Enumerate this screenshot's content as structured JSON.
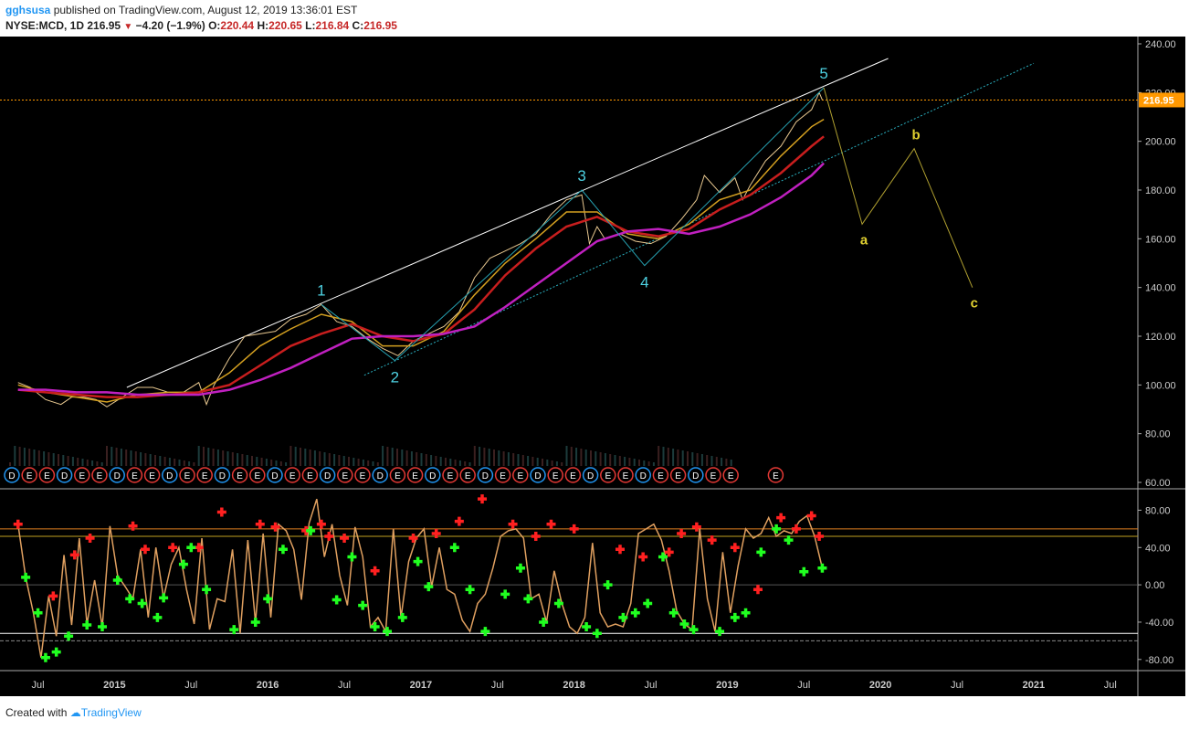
{
  "header": {
    "user": "gghsusa",
    "published": "published on TradingView.com, August 12, 2019 13:36:01 EST",
    "symbol": "NYSE:MCD, 1D",
    "price": "216.95",
    "change": "−4.20 (−1.9%)",
    "o_label": "O:",
    "o_value": "220.44",
    "h_label": "H:",
    "h_value": "220.65",
    "l_label": "L:",
    "l_value": "216.84",
    "c_label": "C:",
    "c_value": "216.95"
  },
  "footer": {
    "created_with": "Created with",
    "brand": "TradingView"
  },
  "colors": {
    "background": "#000000",
    "candle": "#e8c890",
    "ema_fast": "#d4a020",
    "ema_mid": "#c81e1e",
    "ema_slow": "#c020c0",
    "trend_upper": "#ffffff",
    "trend_lower": "#2ab0c0",
    "wave_labels": "#4dd0e1",
    "abc": "#e0d030",
    "osc_line": "#e0a060",
    "osc_up": "#ff2020",
    "osc_down": "#20ff20",
    "price_line": "#ff9800"
  },
  "chart_data": [
    {
      "type": "line",
      "title": "",
      "xlabel": "",
      "ylabel": "",
      "ylim": [
        60,
        240
      ],
      "x_ticks": [
        "Jul",
        "2015",
        "Jul",
        "2016",
        "Jul",
        "2017",
        "Jul",
        "2018",
        "Jul",
        "2019",
        "Jul",
        "2020",
        "Jul",
        "2021",
        "Jul"
      ],
      "y_ticks": [
        "240.00",
        "220.00",
        "200.00",
        "180.00",
        "160.00",
        "140.00",
        "120.00",
        "100.00",
        "80.00",
        "60.00"
      ],
      "last_price_label": "216.95",
      "wave_points": [
        {
          "label": "1",
          "x": 2016.35,
          "y": 133
        },
        {
          "label": "2",
          "x": 2016.83,
          "y": 110
        },
        {
          "label": "3",
          "x": 2018.05,
          "y": 180
        },
        {
          "label": "4",
          "x": 2018.46,
          "y": 149
        },
        {
          "label": "5",
          "x": 2019.63,
          "y": 222
        }
      ],
      "abc_points": [
        {
          "label": "a",
          "x": 2019.88,
          "y": 166
        },
        {
          "label": "b",
          "x": 2020.22,
          "y": 197
        },
        {
          "label": "c",
          "x": 2020.6,
          "y": 140
        }
      ],
      "trendlines": [
        {
          "name": "upper",
          "points": [
            [
              2015.08,
              99
            ],
            [
              2020.05,
              234
            ]
          ]
        },
        {
          "name": "lower",
          "points": [
            [
              2016.63,
              104
            ],
            [
              2021.0,
              232
            ]
          ]
        }
      ],
      "series": [
        {
          "name": "",
          "role": "price",
          "x": [
            2014.37,
            2014.45,
            2014.55,
            2014.65,
            2014.72,
            2014.8,
            2014.88,
            2014.95,
            2015.05,
            2015.15,
            2015.25,
            2015.35,
            2015.45,
            2015.55,
            2015.6,
            2015.65,
            2015.75,
            2015.85,
            2015.95,
            2016.05,
            2016.15,
            2016.25,
            2016.35,
            2016.45,
            2016.55,
            2016.65,
            2016.75,
            2016.85,
            2016.95,
            2017.05,
            2017.15,
            2017.25,
            2017.35,
            2017.45,
            2017.55,
            2017.65,
            2017.75,
            2017.85,
            2017.95,
            2018.05,
            2018.1,
            2018.15,
            2018.2,
            2018.3,
            2018.4,
            2018.5,
            2018.6,
            2018.7,
            2018.8,
            2018.85,
            2018.95,
            2019.05,
            2019.1,
            2019.15,
            2019.25,
            2019.35,
            2019.45,
            2019.55,
            2019.6,
            2019.62
          ],
          "values": [
            101,
            99,
            94,
            92,
            95,
            95,
            94,
            91,
            95,
            99,
            99,
            97,
            97,
            101,
            92,
            100,
            111,
            120,
            121,
            122,
            127,
            129,
            133,
            126,
            124,
            119,
            115,
            112,
            118,
            121,
            124,
            130,
            144,
            152,
            155,
            158,
            162,
            170,
            176,
            178,
            158,
            165,
            160,
            162,
            159,
            158,
            161,
            168,
            176,
            186,
            179,
            185,
            176,
            182,
            192,
            198,
            208,
            213,
            220,
            217
          ]
        },
        {
          "name": "",
          "role": "ema_fast",
          "x": [
            2014.37,
            2014.55,
            2014.75,
            2014.95,
            2015.15,
            2015.35,
            2015.55,
            2015.75,
            2015.95,
            2016.15,
            2016.35,
            2016.55,
            2016.75,
            2016.95,
            2017.15,
            2017.35,
            2017.55,
            2017.75,
            2017.95,
            2018.15,
            2018.35,
            2018.55,
            2018.75,
            2018.95,
            2019.15,
            2019.35,
            2019.55,
            2019.63
          ],
          "values": [
            100,
            97,
            95,
            93,
            96,
            97,
            97,
            105,
            116,
            123,
            129,
            126,
            116,
            116,
            122,
            137,
            150,
            160,
            171,
            171,
            162,
            160,
            166,
            176,
            180,
            194,
            206,
            209
          ]
        },
        {
          "name": "",
          "role": "ema_mid",
          "x": [
            2014.37,
            2014.55,
            2014.75,
            2014.95,
            2015.15,
            2015.35,
            2015.55,
            2015.75,
            2015.95,
            2016.15,
            2016.35,
            2016.55,
            2016.75,
            2016.95,
            2017.15,
            2017.35,
            2017.55,
            2017.75,
            2017.95,
            2018.15,
            2018.35,
            2018.55,
            2018.75,
            2018.95,
            2019.15,
            2019.35,
            2019.55,
            2019.63
          ],
          "values": [
            98,
            97,
            96,
            95,
            95,
            96,
            97,
            100,
            108,
            116,
            121,
            125,
            120,
            118,
            121,
            131,
            145,
            156,
            165,
            169,
            163,
            161,
            164,
            172,
            178,
            187,
            198,
            202
          ]
        },
        {
          "name": "",
          "role": "ema_slow",
          "x": [
            2014.37,
            2014.55,
            2014.75,
            2014.95,
            2015.15,
            2015.35,
            2015.55,
            2015.75,
            2015.95,
            2016.15,
            2016.35,
            2016.55,
            2016.75,
            2016.95,
            2017.15,
            2017.35,
            2017.55,
            2017.75,
            2017.95,
            2018.15,
            2018.35,
            2018.55,
            2018.75,
            2018.95,
            2019.15,
            2019.35,
            2019.55,
            2019.63
          ],
          "values": [
            98,
            98,
            97,
            97,
            96,
            96,
            96,
            98,
            102,
            107,
            113,
            119,
            120,
            120,
            121,
            124,
            132,
            141,
            150,
            159,
            163,
            164,
            162,
            165,
            170,
            177,
            186,
            191
          ]
        }
      ],
      "events": [
        "D",
        "E",
        "E",
        "D",
        "E",
        "E",
        "D",
        "E",
        "E",
        "D",
        "E",
        "E",
        "D",
        "E",
        "E",
        "D",
        "E",
        "E",
        "D",
        "E",
        "E",
        "D",
        "E",
        "E",
        "D",
        "E",
        "E",
        "D",
        "E",
        "E",
        "D",
        "E",
        "E",
        "D",
        "E",
        "E",
        "D",
        "E",
        "E",
        "D",
        "E",
        "E",
        "E"
      ]
    },
    {
      "type": "line",
      "title": "",
      "ylim": [
        -90,
        100
      ],
      "y_ticks": [
        "80.00",
        "40.00",
        "0.00",
        "-40.00",
        "-80.00"
      ],
      "levels": [
        60,
        52,
        0,
        -52,
        -60
      ],
      "series": [
        {
          "name": "",
          "role": "oscillator",
          "x": [
            2014.37,
            2014.42,
            2014.47,
            2014.52,
            2014.57,
            2014.62,
            2014.67,
            2014.72,
            2014.77,
            2014.82,
            2014.87,
            2014.92,
            2014.97,
            2015.02,
            2015.07,
            2015.12,
            2015.17,
            2015.22,
            2015.27,
            2015.32,
            2015.37,
            2015.42,
            2015.47,
            2015.52,
            2015.57,
            2015.62,
            2015.67,
            2015.72,
            2015.77,
            2015.82,
            2015.87,
            2015.92,
            2015.97,
            2016.02,
            2016.07,
            2016.12,
            2016.17,
            2016.22,
            2016.27,
            2016.32,
            2016.37,
            2016.42,
            2016.47,
            2016.52,
            2016.57,
            2016.62,
            2016.67,
            2016.72,
            2016.77,
            2016.82,
            2016.87,
            2016.92,
            2016.97,
            2017.02,
            2017.07,
            2017.12,
            2017.17,
            2017.22,
            2017.27,
            2017.32,
            2017.37,
            2017.42,
            2017.47,
            2017.52,
            2017.57,
            2017.62,
            2017.67,
            2017.72,
            2017.77,
            2017.82,
            2017.87,
            2017.92,
            2017.97,
            2018.02,
            2018.07,
            2018.12,
            2018.17,
            2018.22,
            2018.27,
            2018.32,
            2018.37,
            2018.42,
            2018.47,
            2018.52,
            2018.57,
            2018.62,
            2018.67,
            2018.72,
            2018.77,
            2018.82,
            2018.87,
            2018.92,
            2018.97,
            2019.02,
            2019.07,
            2019.12,
            2019.17,
            2019.22,
            2019.27,
            2019.32,
            2019.37,
            2019.42,
            2019.47,
            2019.52,
            2019.57,
            2019.62
          ],
          "values": [
            65,
            8,
            -30,
            -78,
            -12,
            -55,
            32,
            -43,
            50,
            -42,
            5,
            -45,
            63,
            10,
            -2,
            -15,
            38,
            -35,
            40,
            -14,
            22,
            40,
            -5,
            -42,
            50,
            -48,
            -15,
            -18,
            38,
            -52,
            48,
            -40,
            55,
            -35,
            65,
            58,
            38,
            -16,
            66,
            92,
            30,
            65,
            10,
            -22,
            62,
            30,
            -45,
            -35,
            -50,
            60,
            -35,
            25,
            50,
            60,
            -2,
            40,
            -5,
            -10,
            -38,
            -50,
            -20,
            -10,
            18,
            52,
            58,
            60,
            50,
            -15,
            -10,
            -40,
            15,
            -20,
            -45,
            -52,
            -35,
            45,
            -30,
            -45,
            -42,
            -45,
            -20,
            55,
            60,
            65,
            48,
            15,
            -28,
            -42,
            -48,
            60,
            -15,
            -50,
            35,
            -30,
            20,
            60,
            50,
            55,
            72,
            52,
            58,
            55,
            68,
            74,
            52,
            18
          ]
        },
        {
          "name": "",
          "role": "signal_up_marks",
          "x": [
            2014.37,
            2014.6,
            2014.74,
            2014.84,
            2015.12,
            2015.2,
            2015.38,
            2015.55,
            2015.7,
            2015.95,
            2016.05,
            2016.25,
            2016.35,
            2016.4,
            2016.5,
            2016.7,
            2016.95,
            2017.1,
            2017.25,
            2017.4,
            2017.6,
            2017.75,
            2017.85,
            2018.0,
            2018.3,
            2018.45,
            2018.62,
            2018.7,
            2018.8,
            2018.9,
            2019.05,
            2019.2,
            2019.35,
            2019.45,
            2019.55,
            2019.6
          ],
          "values": [
            65,
            -12,
            32,
            50,
            63,
            38,
            40,
            40,
            78,
            65,
            62,
            58,
            65,
            52,
            50,
            15,
            50,
            55,
            68,
            92,
            65,
            52,
            65,
            60,
            38,
            30,
            35,
            55,
            62,
            48,
            40,
            -5,
            72,
            60,
            74,
            52
          ]
        },
        {
          "name": "",
          "role": "signal_down_marks",
          "x": [
            2014.42,
            2014.5,
            2014.55,
            2014.62,
            2014.7,
            2014.82,
            2014.92,
            2015.02,
            2015.1,
            2015.18,
            2015.28,
            2015.32,
            2015.45,
            2015.5,
            2015.6,
            2015.78,
            2015.92,
            2016.0,
            2016.1,
            2016.28,
            2016.45,
            2016.55,
            2016.62,
            2016.7,
            2016.78,
            2016.88,
            2016.98,
            2017.05,
            2017.22,
            2017.32,
            2017.42,
            2017.55,
            2017.65,
            2017.7,
            2017.8,
            2017.9,
            2018.08,
            2018.15,
            2018.22,
            2018.32,
            2018.4,
            2018.48,
            2018.58,
            2018.65,
            2018.72,
            2018.78,
            2018.95,
            2019.05,
            2019.12,
            2019.22,
            2019.32,
            2019.4,
            2019.5,
            2019.62
          ],
          "values": [
            8,
            -30,
            -78,
            -72,
            -55,
            -43,
            -45,
            5,
            -15,
            -20,
            -35,
            -14,
            22,
            40,
            -5,
            -48,
            -40,
            -15,
            38,
            58,
            -16,
            30,
            -22,
            -45,
            -50,
            -35,
            25,
            -2,
            40,
            -5,
            -50,
            -10,
            18,
            -15,
            -40,
            -20,
            -45,
            -52,
            0,
            -35,
            -30,
            -20,
            30,
            -30,
            -42,
            -48,
            -50,
            -35,
            -30,
            35,
            60,
            48,
            14,
            18
          ]
        }
      ]
    }
  ]
}
